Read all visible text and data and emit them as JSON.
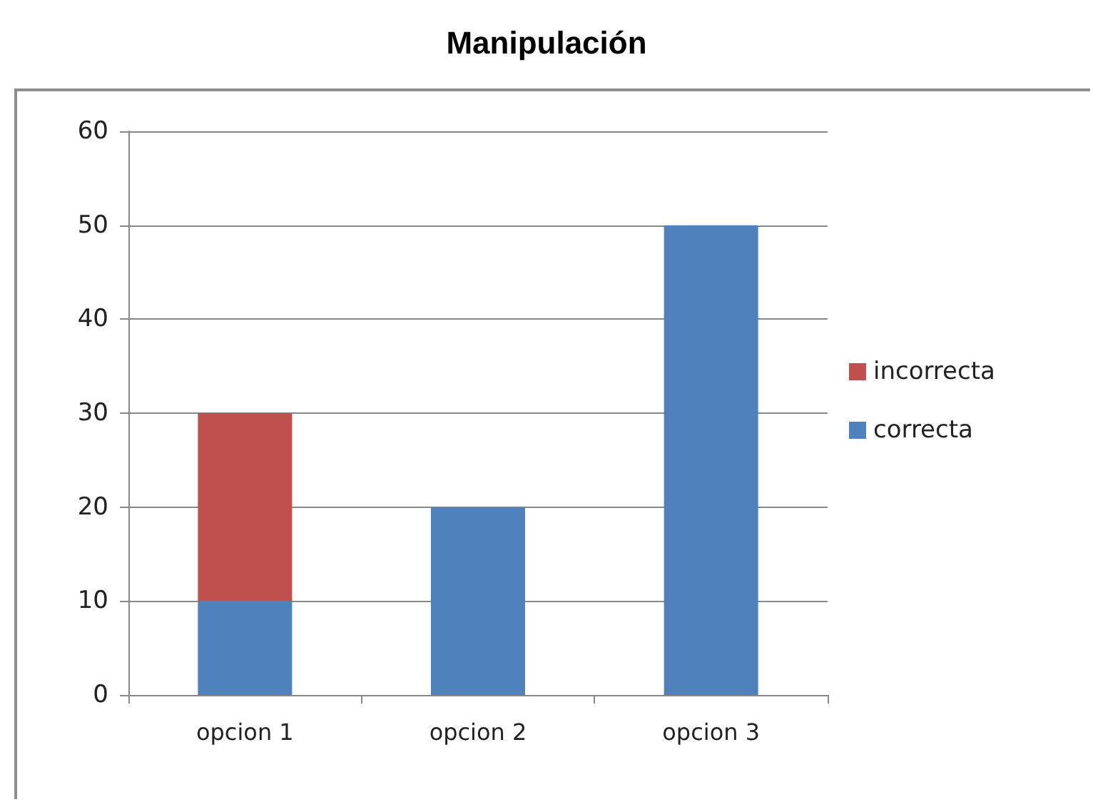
{
  "chart_data": {
    "type": "bar",
    "title": "Manipulación",
    "categories": [
      "opcion 1",
      "opcion 2",
      "opcion 3"
    ],
    "series": [
      {
        "name": "correcta",
        "color": "#4f81bd",
        "values": [
          10,
          20,
          50
        ]
      },
      {
        "name": "incorrecta",
        "color": "#c0504d",
        "values": [
          20,
          null,
          null
        ]
      }
    ],
    "stacked": true,
    "ylim": [
      0,
      60
    ],
    "yticks": [
      0,
      10,
      20,
      30,
      40,
      50,
      60
    ],
    "grid": "y",
    "legend": "right"
  }
}
